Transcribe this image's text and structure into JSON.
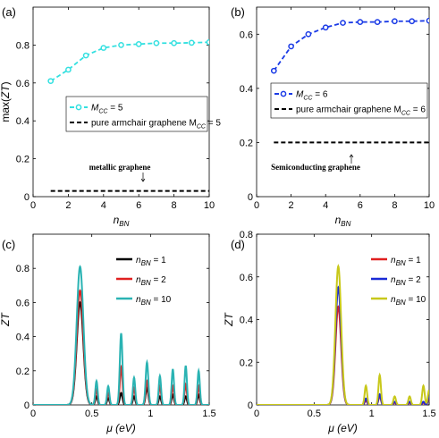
{
  "chart_data": [
    {
      "type": "line",
      "panel_label": "(a)",
      "xlabel": "n",
      "xlabel_sub": "BN",
      "ylabel": "max(ZT)",
      "xlim": [
        0,
        10
      ],
      "ylim": [
        0,
        1
      ],
      "xticks": [
        "0",
        "2",
        "4",
        "6",
        "8",
        "10"
      ],
      "yticks": [
        "0",
        "0.2",
        "0.4",
        "0.6",
        "0.8"
      ],
      "series": [
        {
          "legend_parts": [
            "M",
            "CC",
            " = 5"
          ],
          "color": "#33e0e0",
          "style": "dashed-marker",
          "x": [
            1,
            2,
            3,
            4,
            5,
            6,
            7,
            8,
            9,
            10
          ],
          "y": [
            0.61,
            0.67,
            0.745,
            0.785,
            0.8,
            0.805,
            0.81,
            0.81,
            0.812,
            0.815
          ]
        },
        {
          "legend_parts": [
            "pure armchair graphene M",
            "CC",
            " = 5"
          ],
          "color": "#000000",
          "style": "dashed",
          "x": [
            1,
            10
          ],
          "y": [
            0.03,
            0.03
          ]
        }
      ],
      "annotation": "metallic graphene"
    },
    {
      "type": "line",
      "panel_label": "(b)",
      "xlabel": "n",
      "xlabel_sub": "BN",
      "ylabel": "",
      "xlim": [
        0,
        10
      ],
      "ylim": [
        0,
        0.7
      ],
      "xticks": [
        "0",
        "2",
        "4",
        "6",
        "8",
        "10"
      ],
      "yticks": [
        "0",
        "0.2",
        "0.4",
        "0.6"
      ],
      "series": [
        {
          "legend_parts": [
            "M",
            "CC",
            " = 6"
          ],
          "color": "#1a3ae6",
          "style": "dashed-marker",
          "x": [
            1,
            2,
            3,
            4,
            5,
            6,
            7,
            8,
            9,
            10
          ],
          "y": [
            0.465,
            0.555,
            0.6,
            0.625,
            0.642,
            0.645,
            0.645,
            0.648,
            0.648,
            0.65
          ]
        },
        {
          "legend_parts": [
            "pure armchair graphene M",
            "CC",
            " = 6"
          ],
          "color": "#000000",
          "style": "dashed",
          "x": [
            1,
            10
          ],
          "y": [
            0.2,
            0.2
          ]
        }
      ],
      "annotation": "Semiconducting graphene"
    },
    {
      "type": "line",
      "panel_label": "(c)",
      "xlabel": "μ (eV)",
      "ylabel": "ZT",
      "xlim": [
        0,
        1.5
      ],
      "ylim": [
        0,
        1
      ],
      "xticks": [
        "0",
        "0.5",
        "1",
        "1.5"
      ],
      "yticks": [
        "0",
        "0.2",
        "0.4",
        "0.6",
        "0.8"
      ],
      "series": [
        {
          "legend_parts": [
            "n",
            "BN",
            " = 1"
          ],
          "color": "#000000",
          "peaks": [
            [
              0.4,
              0.6,
              0.04
            ],
            [
              0.54,
              0.05,
              0.014
            ],
            [
              0.64,
              0.04,
              0.014
            ],
            [
              0.75,
              0.07,
              0.016
            ],
            [
              0.86,
              0.05,
              0.014
            ],
            [
              0.97,
              0.1,
              0.016
            ],
            [
              1.08,
              0.05,
              0.014
            ],
            [
              1.19,
              0.06,
              0.014
            ],
            [
              1.3,
              0.05,
              0.014
            ],
            [
              1.41,
              0.06,
              0.014
            ]
          ]
        },
        {
          "legend_parts": [
            "n",
            "BN",
            " = 2"
          ],
          "color": "#e02020",
          "peaks": [
            [
              0.4,
              0.67,
              0.04
            ],
            [
              0.54,
              0.09,
              0.014
            ],
            [
              0.64,
              0.07,
              0.014
            ],
            [
              0.75,
              0.22,
              0.016
            ],
            [
              0.86,
              0.1,
              0.014
            ],
            [
              0.97,
              0.14,
              0.016
            ],
            [
              1.08,
              0.11,
              0.014
            ],
            [
              1.19,
              0.11,
              0.014
            ],
            [
              1.3,
              0.12,
              0.014
            ],
            [
              1.41,
              0.11,
              0.014
            ]
          ]
        },
        {
          "legend_parts": [
            "n",
            "BN",
            " = 10"
          ],
          "color": "#2ab3b3",
          "peaks": [
            [
              0.4,
              0.81,
              0.04
            ],
            [
              0.54,
              0.14,
              0.014
            ],
            [
              0.64,
              0.11,
              0.014
            ],
            [
              0.75,
              0.42,
              0.016
            ],
            [
              0.86,
              0.16,
              0.014
            ],
            [
              0.97,
              0.25,
              0.016
            ],
            [
              1.08,
              0.17,
              0.014
            ],
            [
              1.19,
              0.21,
              0.014
            ],
            [
              1.3,
              0.23,
              0.014
            ],
            [
              1.41,
              0.2,
              0.014
            ]
          ]
        }
      ]
    },
    {
      "type": "line",
      "panel_label": "(d)",
      "xlabel": "μ (eV)",
      "ylabel": "ZT",
      "xlim": [
        0,
        1.5
      ],
      "ylim": [
        0,
        0.8
      ],
      "xticks": [
        "0",
        "0.5",
        "1",
        "1.5"
      ],
      "yticks": [
        "0",
        "0.2",
        "0.4",
        "0.6",
        "0.8"
      ],
      "series": [
        {
          "legend_parts": [
            "n",
            "BN",
            " = 1"
          ],
          "color": "#e02020",
          "peaks": [
            [
              0.71,
              0.46,
              0.035
            ],
            [
              0.95,
              0.02,
              0.015
            ],
            [
              1.07,
              0.04,
              0.015
            ],
            [
              1.2,
              0.01,
              0.015
            ],
            [
              1.33,
              0.01,
              0.015
            ],
            [
              1.45,
              0.01,
              0.015
            ],
            [
              1.5,
              0.03,
              0.015
            ]
          ]
        },
        {
          "legend_parts": [
            "n",
            "BN",
            " = 2"
          ],
          "color": "#1a2ad6",
          "peaks": [
            [
              0.71,
              0.55,
              0.035
            ],
            [
              0.95,
              0.03,
              0.015
            ],
            [
              1.07,
              0.05,
              0.015
            ],
            [
              1.2,
              0.015,
              0.015
            ],
            [
              1.33,
              0.015,
              0.015
            ],
            [
              1.45,
              0.015,
              0.015
            ],
            [
              1.5,
              0.04,
              0.015
            ]
          ]
        },
        {
          "legend_parts": [
            "n",
            "BN",
            " = 10"
          ],
          "color": "#c8c81a",
          "peaks": [
            [
              0.71,
              0.65,
              0.035
            ],
            [
              0.95,
              0.09,
              0.015
            ],
            [
              1.07,
              0.14,
              0.015
            ],
            [
              1.2,
              0.04,
              0.015
            ],
            [
              1.33,
              0.04,
              0.015
            ],
            [
              1.45,
              0.09,
              0.015
            ],
            [
              1.5,
              0.07,
              0.015
            ]
          ]
        }
      ]
    }
  ]
}
